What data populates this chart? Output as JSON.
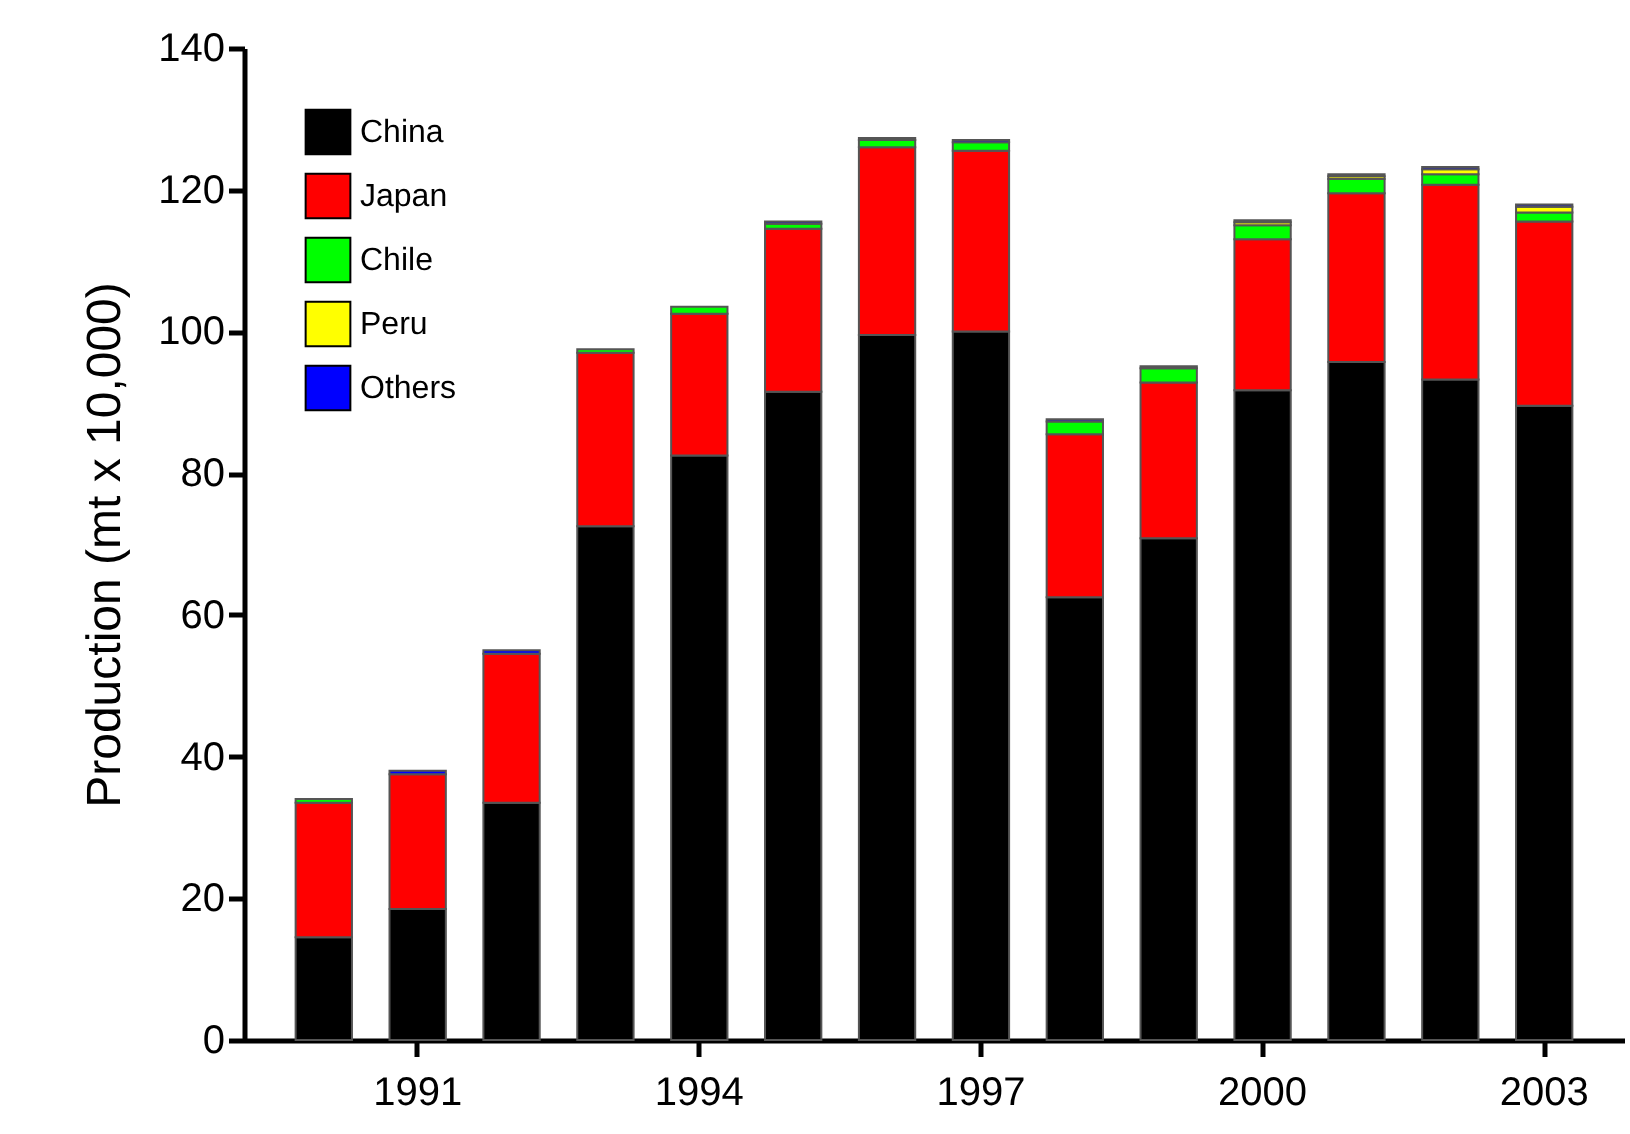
{
  "chart_data": {
    "type": "bar",
    "stacked": true,
    "ylabel": "Production (mt x 10,000)",
    "categories": [
      null,
      "1991",
      null,
      null,
      "1994",
      null,
      null,
      "1997",
      null,
      null,
      "2000",
      null,
      null,
      "2003"
    ],
    "series": [
      {
        "name": "China",
        "color": "#000000",
        "values": [
          14.5,
          18.5,
          33.5,
          72.5,
          82.5,
          91.5,
          99.5,
          100,
          62.5,
          70.8,
          91.7,
          95.7,
          93.2,
          89.5
        ]
      },
      {
        "name": "Japan",
        "color": "#ff0000",
        "values": [
          19,
          19,
          21,
          24.5,
          20,
          23,
          26.5,
          25.5,
          23,
          22,
          21.3,
          23.8,
          27.5,
          26
        ]
      },
      {
        "name": "Chile",
        "color": "#00ff00",
        "values": [
          0.5,
          null,
          null,
          0.5,
          1,
          0.7,
          1,
          1.2,
          1.8,
          2,
          2,
          2,
          1.5,
          1.3
        ]
      },
      {
        "name": "Peru",
        "color": "#ffff00",
        "values": [
          null,
          null,
          null,
          null,
          null,
          null,
          null,
          null,
          null,
          null,
          0.4,
          0.4,
          0.7,
          0.8
        ]
      },
      {
        "name": "Others",
        "color": "#0000ff",
        "values": [
          null,
          0.5,
          0.5,
          null,
          null,
          0.3,
          0.3,
          0.3,
          0.3,
          0.3,
          0.3,
          0.3,
          0.3,
          0.3
        ]
      }
    ],
    "ylim": [
      0,
      140
    ],
    "yticks": [
      0,
      20,
      40,
      60,
      80,
      100,
      120,
      140
    ],
    "grid": false,
    "legend": "top left"
  }
}
